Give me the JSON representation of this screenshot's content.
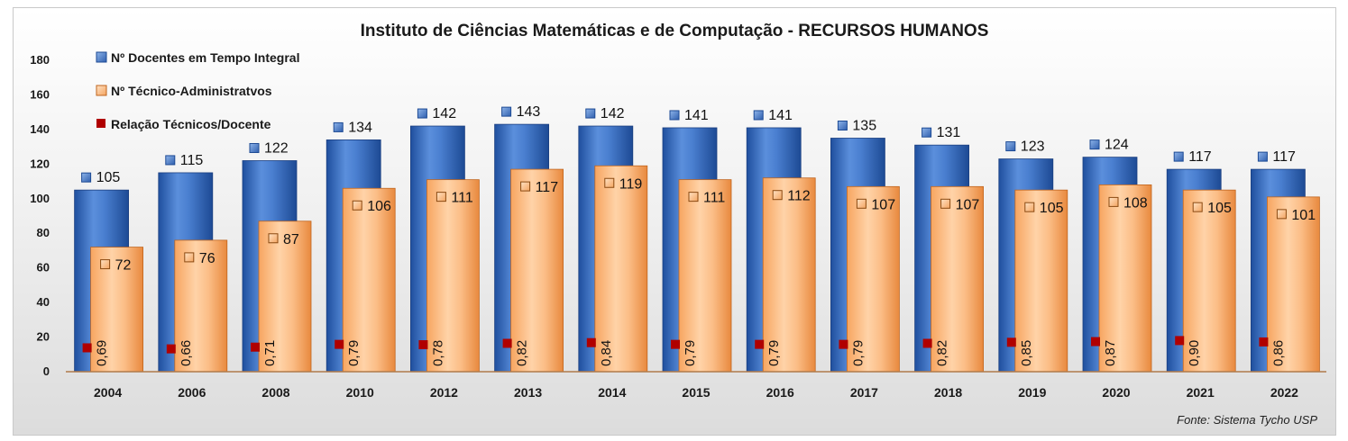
{
  "chart_data": {
    "type": "bar",
    "title": "Instituto de Ciências Matemáticas e de Computação - RECURSOS HUMANOS",
    "source": "Fonte: Sistema Tycho USP",
    "categories": [
      "2004",
      "2006",
      "2008",
      "2010",
      "2012",
      "2013",
      "2014",
      "2015",
      "2016",
      "2017",
      "2018",
      "2019",
      "2020",
      "2021",
      "2022"
    ],
    "ylim": [
      0,
      180
    ],
    "yticks": [
      0,
      20,
      40,
      60,
      80,
      100,
      120,
      140,
      160,
      180
    ],
    "grid": false,
    "legend_position": "top-left",
    "series": [
      {
        "name": "Nº Docentes em Tempo Integral",
        "type": "bar",
        "color": "#3e73c4",
        "values": [
          105,
          115,
          122,
          134,
          142,
          143,
          142,
          141,
          141,
          135,
          131,
          123,
          124,
          117,
          117
        ]
      },
      {
        "name": "Nº Técnico-Administratvos",
        "type": "bar",
        "color": "#f4a460",
        "values": [
          72,
          76,
          87,
          106,
          111,
          117,
          119,
          111,
          112,
          107,
          107,
          105,
          108,
          105,
          101
        ]
      },
      {
        "name": "Relação Técnicos/Docente",
        "type": "marker",
        "color": "#b00000",
        "values": [
          0.69,
          0.66,
          0.71,
          0.79,
          0.78,
          0.82,
          0.84,
          0.79,
          0.79,
          0.79,
          0.82,
          0.85,
          0.87,
          0.9,
          0.86
        ],
        "labels": [
          "0,69",
          "0,66",
          "0,71",
          "0,79",
          "0,78",
          "0,82",
          "0,84",
          "0,79",
          "0,79",
          "0,79",
          "0,82",
          "0,85",
          "0,87",
          "0,90",
          "0,86"
        ]
      }
    ]
  }
}
